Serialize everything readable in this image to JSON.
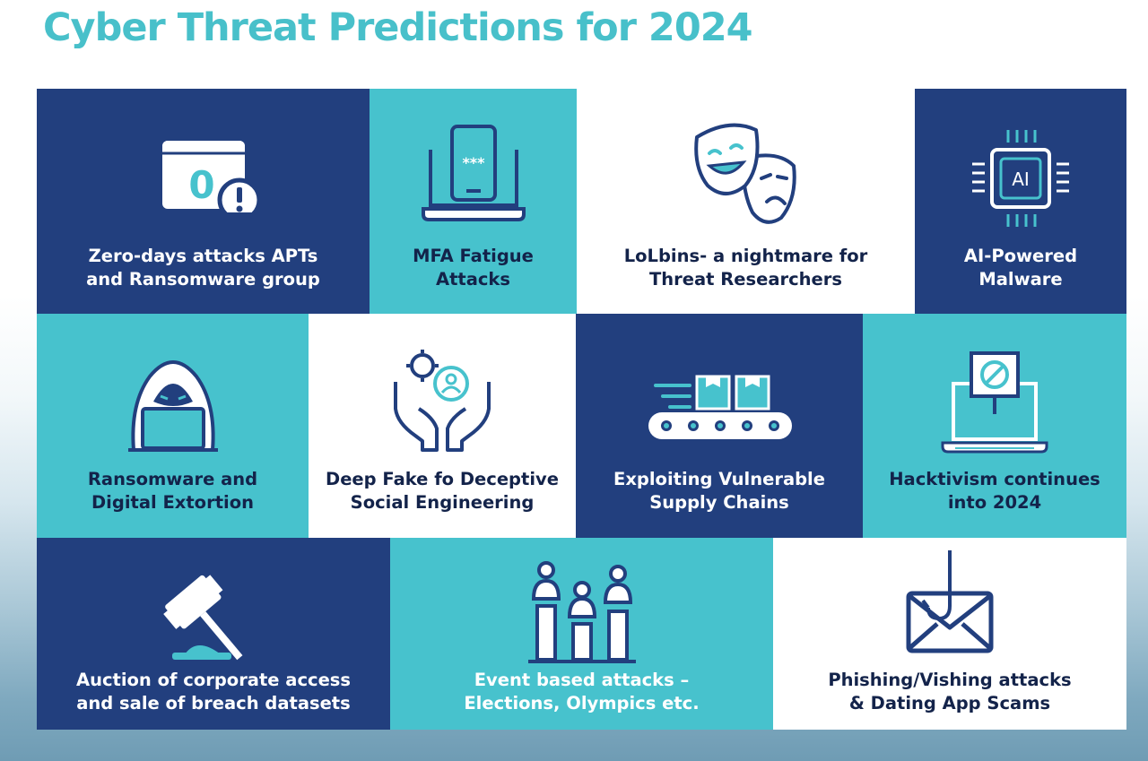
{
  "title": "Cyber Threat Predictions for 2024",
  "colors": {
    "navy": "#223f7e",
    "teal": "#47c2cd",
    "white": "#ffffff",
    "title": "#48c0ca"
  },
  "tiles": [
    {
      "label": "Zero-days attacks APTs\nand Ransomware group",
      "icon": "zero-day-warning-icon"
    },
    {
      "label": "MFA Fatigue\nAttacks",
      "icon": "laptop-phone-password-icon"
    },
    {
      "label": "LoLbins- a nightmare for\nThreat Researchers",
      "icon": "theater-masks-icon"
    },
    {
      "label": "AI-Powered\nMalware",
      "icon": "ai-chip-icon"
    },
    {
      "label": "Ransomware and\nDigital Extortion",
      "icon": "hooded-hacker-icon"
    },
    {
      "label": "Deep Fake fo Deceptive\nSocial Engineering",
      "icon": "hands-gear-user-icon"
    },
    {
      "label": "Exploiting Vulnerable\nSupply Chains",
      "icon": "conveyor-boxes-icon"
    },
    {
      "label": "Hacktivism continues\ninto 2024",
      "icon": "laptop-protest-sign-icon"
    },
    {
      "label": "Auction of corporate access\nand sale of breach datasets",
      "icon": "auction-gavel-icon"
    },
    {
      "label": "Event based attacks –\nElections, Olympics etc.",
      "icon": "podium-people-icon"
    },
    {
      "label": "Phishing/Vishing attacks\n& Dating App Scams",
      "icon": "phishing-envelope-icon"
    }
  ]
}
